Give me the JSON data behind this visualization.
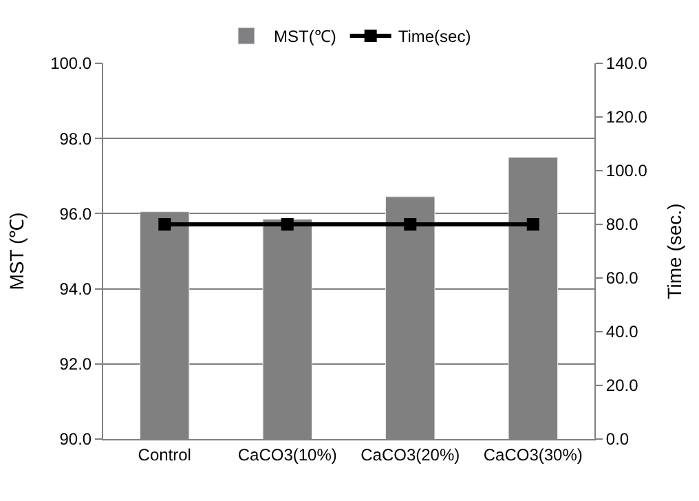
{
  "chart_data": {
    "type": "bar",
    "categories": [
      "Control",
      "CaCO3(10%)",
      "CaCO3(20%)",
      "CaCO3(30%)"
    ],
    "series": [
      {
        "name": "MST(℃)",
        "color": "#808080",
        "values": [
          96.05,
          95.85,
          96.45,
          97.5
        ]
      },
      {
        "name": "Time(sec)",
        "type": "line",
        "axis": "y2",
        "color": "#000000",
        "values": [
          80,
          80,
          80,
          80
        ]
      }
    ],
    "ylabel": "MST (℃)",
    "y2label": "Time (sec.)",
    "ylim": [
      90,
      100
    ],
    "yticks": [
      {
        "value": 90,
        "label": "90.0"
      },
      {
        "value": 92,
        "label": "92.0"
      },
      {
        "value": 94,
        "label": "94.0"
      },
      {
        "value": 96,
        "label": "96.0"
      },
      {
        "value": 98,
        "label": "98.0"
      },
      {
        "value": 100,
        "label": "100.0"
      }
    ],
    "y2lim": [
      0,
      140
    ],
    "y2ticks": [
      {
        "value": 0,
        "label": "0.0"
      },
      {
        "value": 20,
        "label": "20.0"
      },
      {
        "value": 40,
        "label": "40.0"
      },
      {
        "value": 60,
        "label": "60.0"
      },
      {
        "value": 80,
        "label": "80.0"
      },
      {
        "value": 100,
        "label": "100.0"
      },
      {
        "value": 120,
        "label": "120.0"
      },
      {
        "value": 140,
        "label": "140.0"
      }
    ],
    "grid": "y",
    "legend": "top",
    "marker": "square",
    "line_style": "solid"
  }
}
